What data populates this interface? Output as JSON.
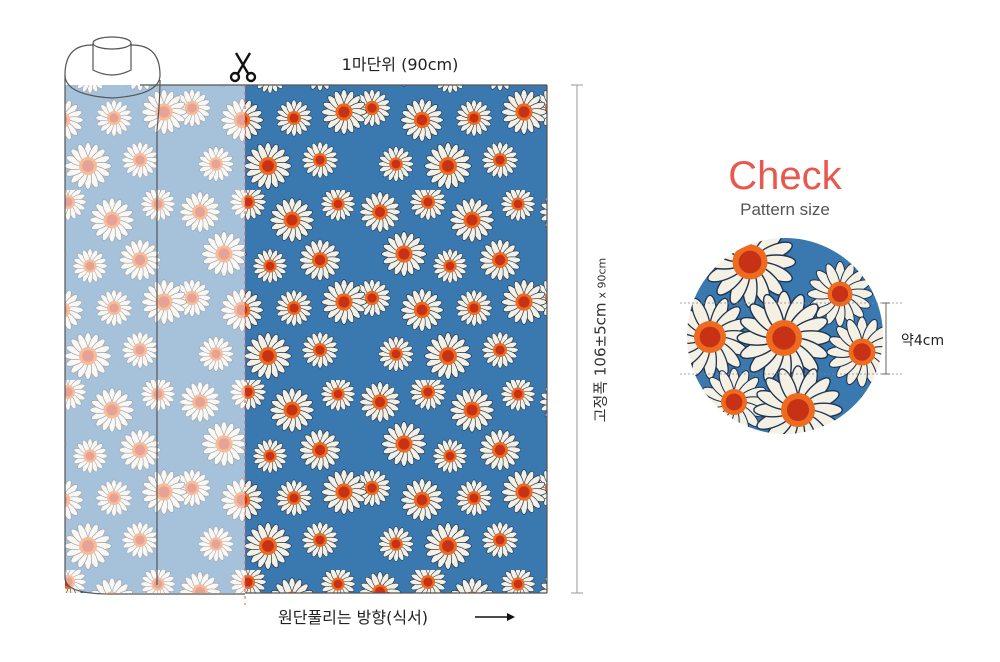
{
  "fabric": {
    "unit_label": "1마단위 (90cm)",
    "width_label": "고정폭 106±5cm",
    "width_sub": "x 90cm",
    "direction_label": "원단풀리는 방향(식서)",
    "colors": {
      "background": "#3a78b0",
      "petal": "#f5f0e4",
      "center_outer": "#ee6a1e",
      "center_inner": "#c73216",
      "outline": "#1f3450"
    }
  },
  "check": {
    "title": "Check",
    "subtitle": "Pattern size",
    "measure": "약4cm",
    "title_color": "#e8584e"
  },
  "icons": {
    "scissors": "scissors-icon",
    "arrow": "arrow-right-icon"
  }
}
